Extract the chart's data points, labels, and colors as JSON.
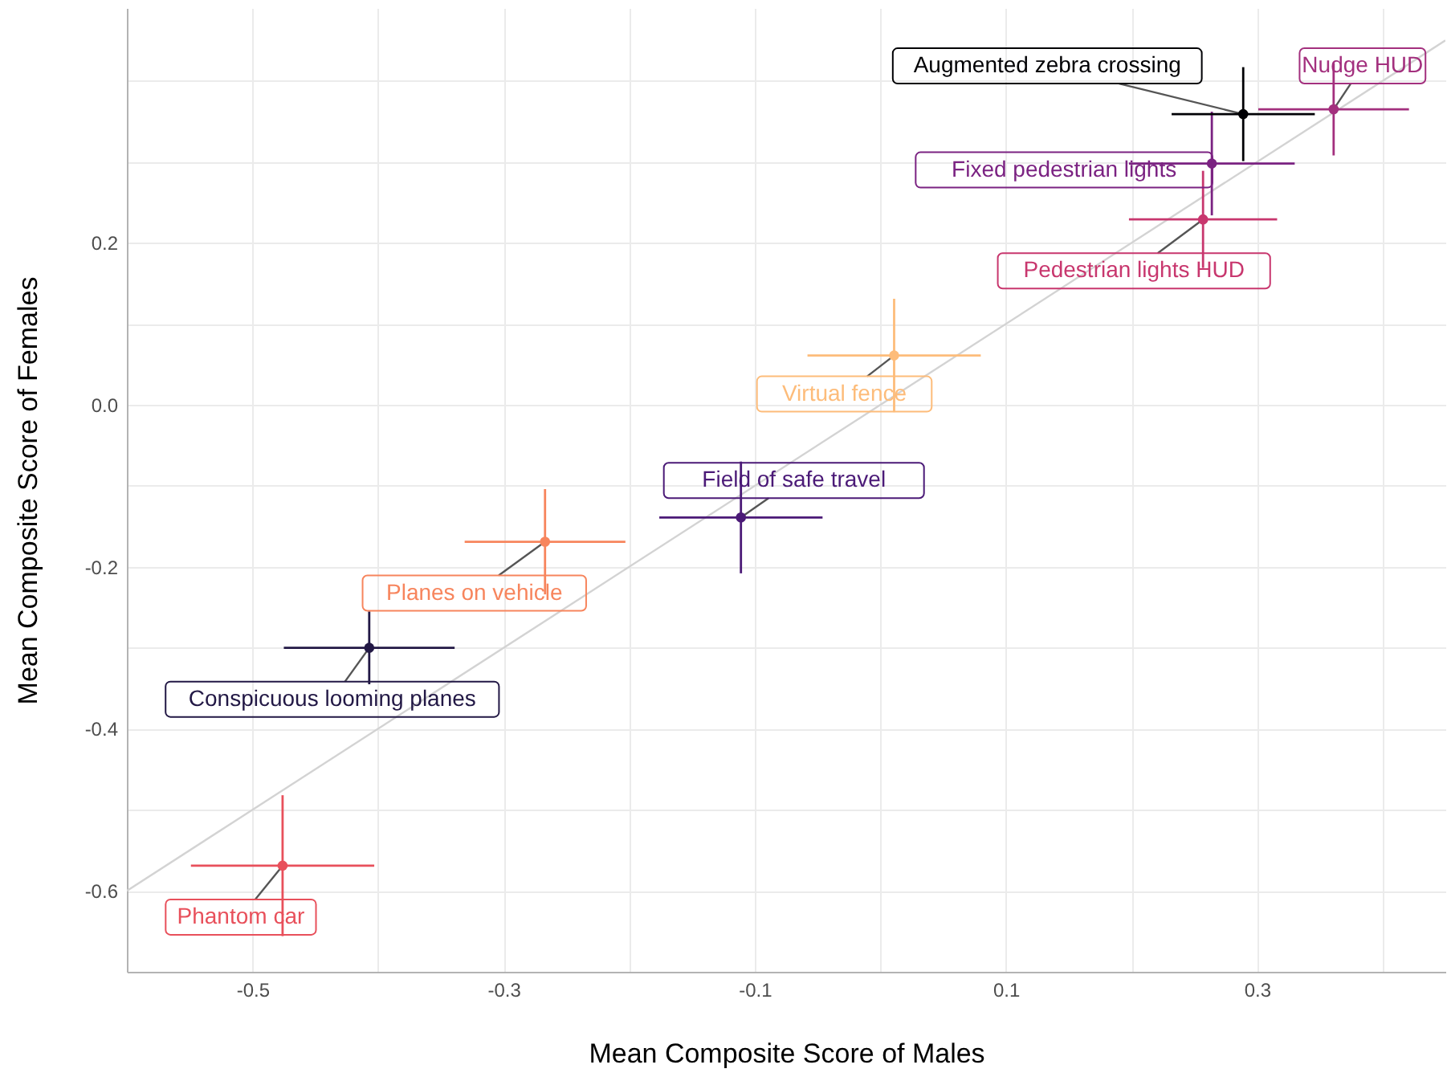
{
  "chart_data": {
    "type": "scatter",
    "xlabel": "Mean Composite Score of Males",
    "ylabel": "Mean Composite Score of Females",
    "xlim": [
      -0.6,
      0.45
    ],
    "ylim": [
      -0.7,
      0.49
    ],
    "xticks": [
      -0.5,
      {
        "value": -0.4,
        "label": null
      },
      -0.3,
      {
        "value": -0.2,
        "label": null
      },
      -0.1,
      {
        "value": 0,
        "label": null
      },
      0.1,
      {
        "value": 0.2,
        "label": null
      },
      0.3,
      {
        "value": 0.4,
        "label": null
      }
    ],
    "yticks": [
      {
        "value": -0.7,
        "label": null
      },
      -0.6,
      {
        "value": -0.5,
        "label": null
      },
      -0.4,
      {
        "value": -0.3,
        "label": null
      },
      -0.2,
      {
        "value": -0.1,
        "label": null
      },
      {
        "value": 0,
        "label": "0.0"
      },
      {
        "value": 0.1,
        "label": null
      },
      0.2,
      {
        "value": 0.3,
        "label": null
      },
      {
        "value": 0.4,
        "label": null
      }
    ],
    "grid": true,
    "marker": "circle",
    "series": [
      {
        "type": "line",
        "marker": "none",
        "color": "#d3d3d3",
        "x": [
          -0.6,
          0.45
        ],
        "values": [
          -0.6,
          0.45
        ]
      },
      {
        "name": "Phantom car",
        "color": "#e8505b",
        "x": [
          -0.476
        ],
        "values": [
          -0.569
        ],
        "xerrors": [
          0.073
        ],
        "errors": [
          0.087
        ]
      },
      {
        "name": "Conspicuous looming planes",
        "color": "#221845",
        "x": [
          -0.407
        ],
        "values": [
          -0.3
        ],
        "xerrors": [
          0.068
        ],
        "errors": [
          0.045
        ]
      },
      {
        "name": "Planes on vehicle",
        "color": "#f7855d",
        "x": [
          -0.267
        ],
        "values": [
          -0.169
        ],
        "xerrors": [
          0.064
        ],
        "errors": [
          0.065
        ]
      },
      {
        "name": "Field of safe travel",
        "color": "#4b1a77",
        "x": [
          -0.111
        ],
        "values": [
          -0.139
        ],
        "xerrors": [
          0.065
        ],
        "errors": [
          0.069
        ]
      },
      {
        "name": "Virtual fence",
        "color": "#fdbc7a",
        "x": [
          0.011
        ],
        "values": [
          0.061
        ],
        "xerrors": [
          0.069
        ],
        "errors": [
          0.07
        ]
      },
      {
        "name": "Pedestrian lights HUD",
        "color": "#c8376e",
        "x": [
          0.257
        ],
        "values": [
          0.229
        ],
        "xerrors": [
          0.059
        ],
        "errors": [
          0.06
        ]
      },
      {
        "name": "Fixed pedestrian lights",
        "color": "#7b2382",
        "x": [
          0.264
        ],
        "values": [
          0.298
        ],
        "xerrors": [
          0.066
        ],
        "errors": [
          0.064
        ]
      },
      {
        "name": "Augmented zebra crossing",
        "color": "#000004",
        "x": [
          0.289
        ],
        "values": [
          0.359
        ],
        "xerrors": [
          0.057
        ],
        "errors": [
          0.058
        ]
      },
      {
        "name": "Nudge HUD",
        "color": "#a3307e",
        "x": [
          0.361
        ],
        "values": [
          0.365
        ],
        "xerrors": [
          0.06
        ],
        "errors": [
          0.057
        ]
      }
    ]
  }
}
